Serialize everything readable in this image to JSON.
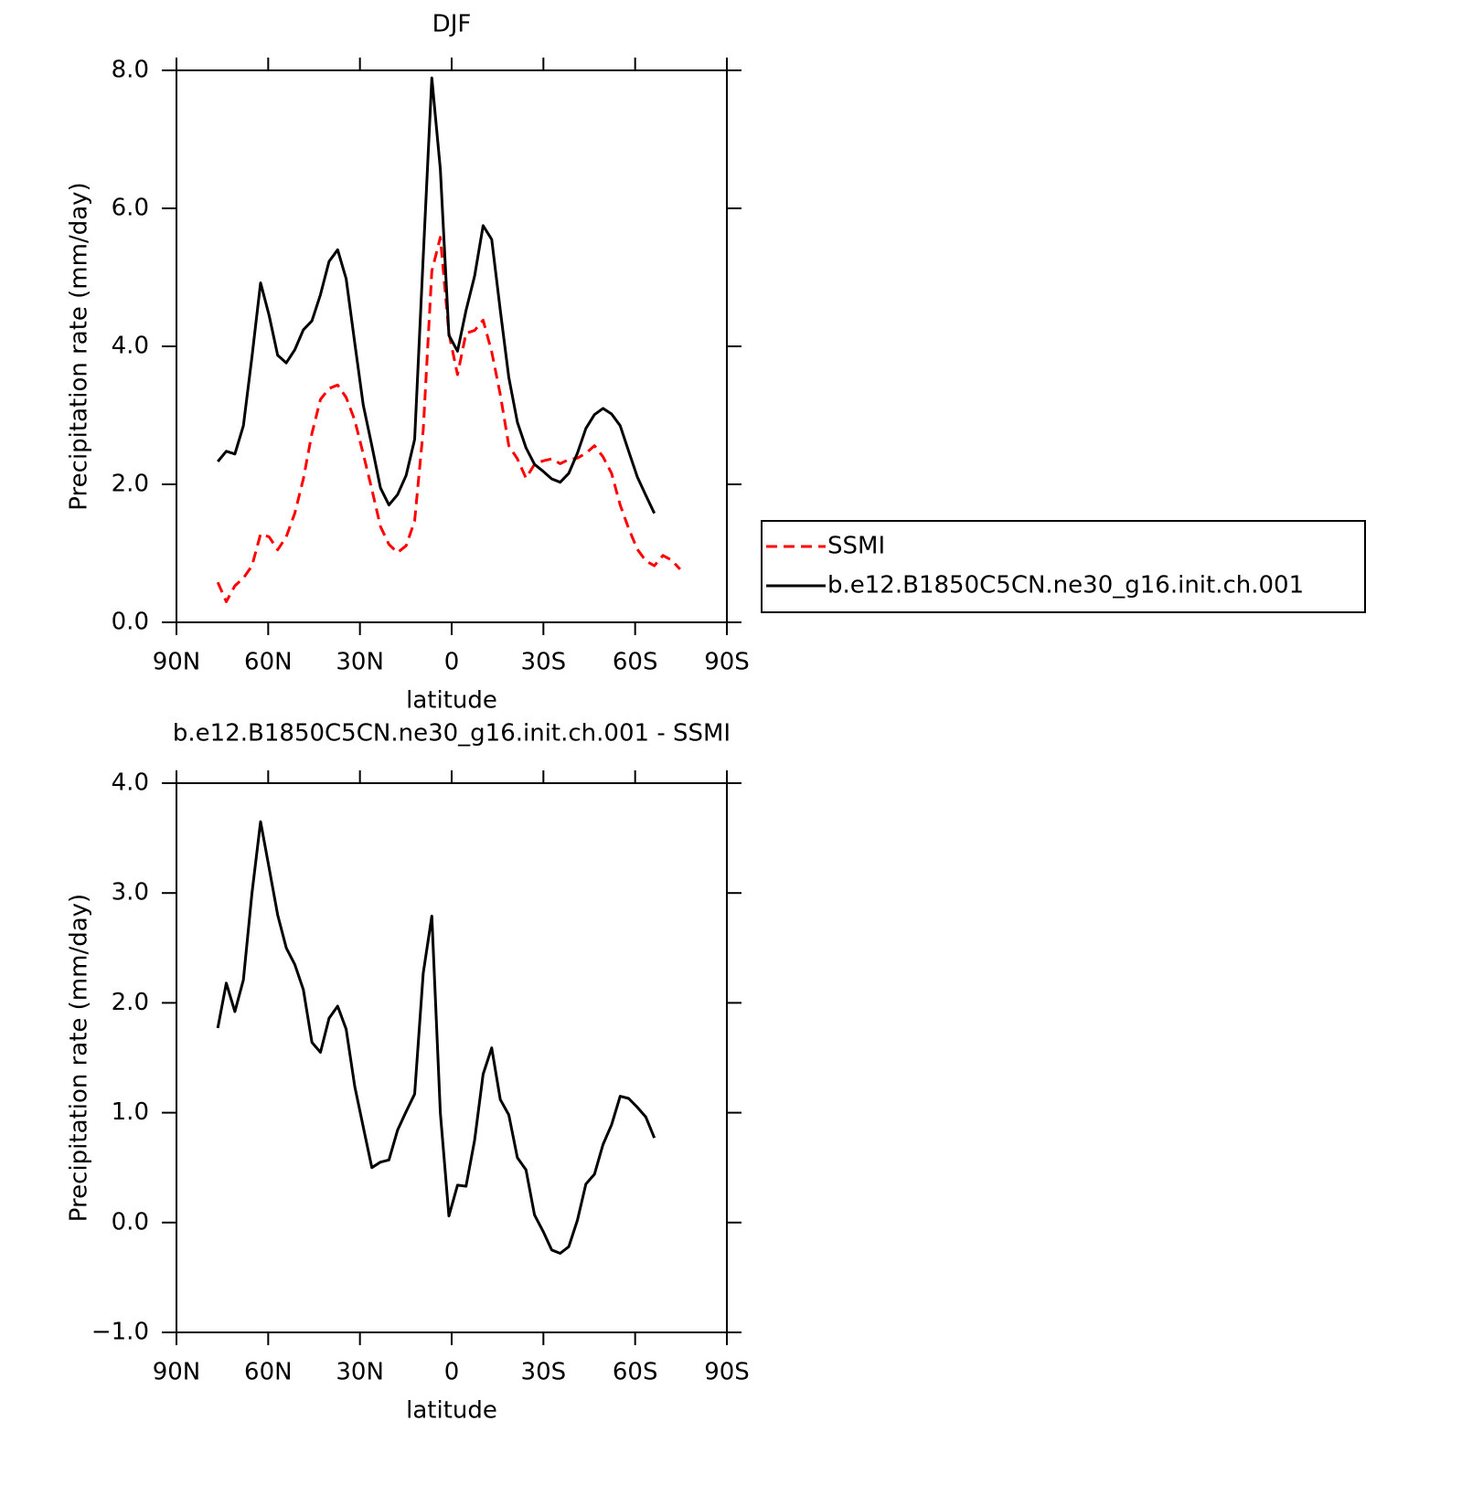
{
  "chart_data": [
    {
      "type": "line",
      "title": "DJF",
      "xlabel": "latitude",
      "ylabel": "Precipitation rate (mm/day)",
      "x": [
        76.5,
        73.7,
        70.9,
        68.1,
        65.3,
        62.5,
        59.7,
        56.9,
        54.1,
        51.3,
        48.5,
        45.7,
        42.9,
        40.1,
        37.3,
        34.5,
        31.7,
        28.9,
        26.1,
        23.3,
        20.5,
        17.7,
        14.9,
        12.1,
        9.3,
        6.5,
        3.7,
        0.9,
        -1.9,
        -4.7,
        -7.5,
        -10.3,
        -13.1,
        -15.9,
        -18.7,
        -21.5,
        -24.3,
        -27.1,
        -29.9,
        -32.7,
        -35.5,
        -38.3,
        -41.1,
        -43.9,
        -46.7,
        -49.5,
        -52.3,
        -55.1,
        -57.9,
        -60.7,
        -63.5,
        -66.3,
        -69.1,
        -71.9,
        -74.7
      ],
      "xlim": [
        90,
        -90
      ],
      "xticks": [
        {
          "value": 90,
          "label": "90N"
        },
        {
          "value": 60,
          "label": "60N"
        },
        {
          "value": 30,
          "label": "30N"
        },
        0,
        {
          "value": -30,
          "label": "30S"
        },
        {
          "value": -60,
          "label": "60S"
        },
        {
          "value": -90,
          "label": "90S"
        }
      ],
      "ylim": [
        0,
        8
      ],
      "yticks": [
        {
          "value": 0,
          "label": "0.0"
        },
        {
          "value": 2,
          "label": "2.0"
        },
        {
          "value": 4,
          "label": "4.0"
        },
        {
          "value": 6,
          "label": "6.0"
        },
        {
          "value": 8,
          "label": "8.0"
        }
      ],
      "legend": "right",
      "series": [
        {
          "name": "SSMI",
          "color": "#ff0000",
          "style": "dashed",
          "values": [
            0.58,
            0.3,
            0.53,
            0.64,
            0.82,
            1.28,
            1.24,
            1.05,
            1.24,
            1.58,
            2.08,
            2.74,
            3.23,
            3.39,
            3.44,
            3.26,
            2.93,
            2.44,
            1.93,
            1.39,
            1.13,
            1.01,
            1.11,
            1.47,
            2.79,
            5.09,
            5.58,
            4.19,
            3.59,
            4.19,
            4.23,
            4.38,
            3.92,
            3.3,
            2.56,
            2.37,
            2.09,
            2.29,
            2.34,
            2.37,
            2.3,
            2.36,
            2.38,
            2.45,
            2.56,
            2.4,
            2.16,
            1.7,
            1.36,
            1.06,
            0.89,
            0.82,
            0.97,
            0.9,
            0.77
          ]
        },
        {
          "name": "b.e12.B1850C5CN.ne30_g16.init.ch.001",
          "color": "#000000",
          "style": "solid",
          "values": [
            2.33,
            2.48,
            2.44,
            2.85,
            3.85,
            4.92,
            4.45,
            3.87,
            3.76,
            3.95,
            4.24,
            4.37,
            4.75,
            5.23,
            5.4,
            4.98,
            4.05,
            3.15,
            2.56,
            1.95,
            1.7,
            1.85,
            2.13,
            2.65,
            5.3,
            7.89,
            6.57,
            4.16,
            3.93,
            4.52,
            5.02,
            5.75,
            5.55,
            4.52,
            3.55,
            2.9,
            2.53,
            2.29,
            2.19,
            2.08,
            2.03,
            2.16,
            2.45,
            2.81,
            3.01,
            3.1,
            3.02,
            2.85,
            2.48,
            2.11,
            1.84,
            1.58,
            null,
            null,
            null
          ]
        }
      ]
    },
    {
      "type": "line",
      "title": "b.e12.B1850C5CN.ne30_g16.init.ch.001 - SSMI",
      "xlabel": "latitude",
      "ylabel": "Precipitation rate (mm/day)",
      "x": [
        76.5,
        73.7,
        70.9,
        68.1,
        65.3,
        62.5,
        59.7,
        56.9,
        54.1,
        51.3,
        48.5,
        45.7,
        42.9,
        40.1,
        37.3,
        34.5,
        31.7,
        28.9,
        26.1,
        23.3,
        20.5,
        17.7,
        14.9,
        12.1,
        9.3,
        6.5,
        3.7,
        0.9,
        -1.9,
        -4.7,
        -7.5,
        -10.3,
        -13.1,
        -15.9,
        -18.7,
        -21.5,
        -24.3,
        -27.1,
        -29.9,
        -32.7,
        -35.5,
        -38.3,
        -41.1,
        -43.9,
        -46.7,
        -49.5,
        -52.3,
        -55.1,
        -57.9,
        -60.7,
        -63.5,
        -66.3
      ],
      "xlim": [
        90,
        -90
      ],
      "xticks": [
        {
          "value": 90,
          "label": "90N"
        },
        {
          "value": 60,
          "label": "60N"
        },
        {
          "value": 30,
          "label": "30N"
        },
        0,
        {
          "value": -30,
          "label": "30S"
        },
        {
          "value": -60,
          "label": "60S"
        },
        {
          "value": -90,
          "label": "90S"
        }
      ],
      "ylim": [
        -1,
        4
      ],
      "yticks": [
        {
          "value": -1,
          "label": "−1.0"
        },
        {
          "value": 0,
          "label": "0.0"
        },
        {
          "value": 1,
          "label": "1.0"
        },
        {
          "value": 2,
          "label": "2.0"
        },
        {
          "value": 3,
          "label": "3.0"
        },
        {
          "value": 4,
          "label": "4.0"
        }
      ],
      "series": [
        {
          "color": "#000000",
          "style": "solid",
          "values": [
            1.77,
            2.18,
            1.92,
            2.21,
            3.0,
            3.65,
            3.23,
            2.8,
            2.5,
            2.35,
            2.12,
            1.64,
            1.55,
            1.86,
            1.97,
            1.76,
            1.24,
            0.87,
            0.5,
            0.55,
            0.57,
            0.84,
            1.01,
            1.17,
            2.27,
            2.79,
            1.0,
            0.06,
            0.34,
            0.33,
            0.75,
            1.35,
            1.59,
            1.12,
            0.98,
            0.59,
            0.48,
            0.07,
            -0.08,
            -0.25,
            -0.28,
            -0.22,
            0.02,
            0.35,
            0.44,
            0.71,
            0.89,
            1.15,
            1.13,
            1.05,
            0.96,
            0.77
          ]
        }
      ]
    }
  ]
}
